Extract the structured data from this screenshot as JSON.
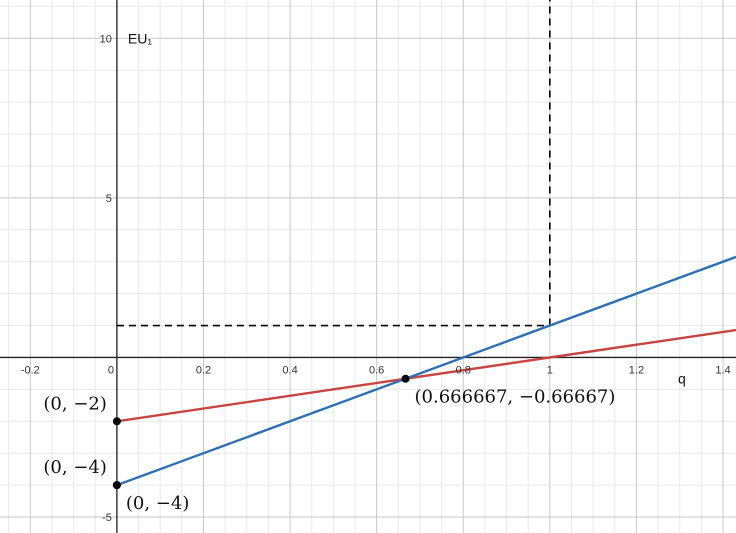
{
  "chart_data": {
    "type": "line",
    "xlabel": "q",
    "ylabel": "EU₁",
    "xlim": [
      -0.27,
      1.43
    ],
    "ylim": [
      -5.5,
      11.2
    ],
    "grid": true,
    "x_ticks": [
      {
        "value": -0.2,
        "label": "-0.2"
      },
      {
        "value": 0,
        "label": "0"
      },
      {
        "value": 0.2,
        "label": "0.2"
      },
      {
        "value": 0.4,
        "label": "0.4"
      },
      {
        "value": 0.6,
        "label": "0.6"
      },
      {
        "value": 0.8,
        "label": "0.8"
      },
      {
        "value": 1,
        "label": "1"
      },
      {
        "value": 1.2,
        "label": "1.2"
      },
      {
        "value": 1.4,
        "label": "1.4"
      }
    ],
    "y_ticks": [
      {
        "value": 10,
        "label": "10"
      },
      {
        "value": 5,
        "label": "5"
      },
      {
        "value": -5,
        "label": "-5"
      }
    ],
    "series": [
      {
        "color": "#c74440",
        "x": [
          0,
          1.43
        ],
        "y": [
          -2,
          0.86
        ]
      },
      {
        "color": "#2d70b3",
        "x": [
          0,
          1.43
        ],
        "y": [
          -4,
          3.15
        ]
      }
    ],
    "dashed_lines": [
      {
        "x": [
          1,
          1
        ],
        "y": [
          1,
          11.2
        ]
      },
      {
        "x": [
          0,
          1
        ],
        "y": [
          1,
          1
        ]
      }
    ],
    "points": [
      {
        "x": 0,
        "y": -2,
        "label": "(0, −2)",
        "anchor": "left"
      },
      {
        "x": 0,
        "y": -4,
        "label": "(0, −4)",
        "anchor": "left"
      },
      {
        "x": 0,
        "y": -4,
        "label": "(0, −4)",
        "anchor": "below-right"
      },
      {
        "x": 0.666667,
        "y": -0.66667,
        "label": "(0.666667, −0.66667)",
        "anchor": "below-right"
      }
    ]
  }
}
